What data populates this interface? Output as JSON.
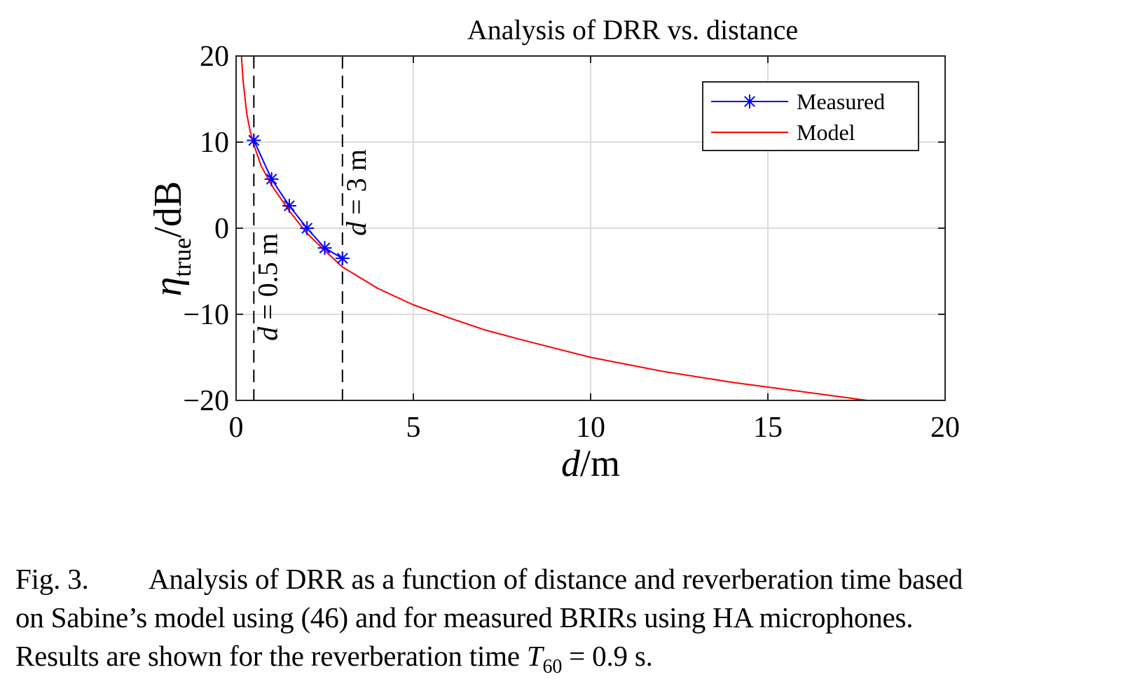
{
  "chart_data": {
    "type": "line",
    "title": "Analysis of DRR vs. distance",
    "xlabel": {
      "var": "d",
      "unit": "/m"
    },
    "ylabel": {
      "var": "η",
      "sub": "true",
      "unit": "/dB"
    },
    "xlim": [
      0,
      20
    ],
    "ylim": [
      -20,
      20
    ],
    "xticks": [
      0,
      5,
      10,
      15,
      20
    ],
    "yticks": [
      20,
      10,
      0,
      -10,
      -20
    ],
    "ytick_labels": [
      "20",
      "10",
      "0",
      "−10",
      "−20"
    ],
    "grid": true,
    "legend_placement": "top-right",
    "series": [
      {
        "name": "Measured",
        "color": "#0000ff",
        "marker": "asterisk",
        "x": [
          0.5,
          1.0,
          1.5,
          2.0,
          2.5,
          3.0
        ],
        "y": [
          10.2,
          5.7,
          2.6,
          0.0,
          -2.3,
          -3.5
        ]
      },
      {
        "name": "Model",
        "color": "#ff0000",
        "marker": "none",
        "x": [
          0.15,
          0.2,
          0.3,
          0.4,
          0.5,
          0.7,
          1.0,
          1.5,
          2.0,
          2.5,
          3.0,
          4.0,
          5.0,
          6.0,
          7.0,
          8.0,
          10.0,
          12.0,
          14.0,
          16.0,
          17.8
        ],
        "y": [
          20.0,
          17.0,
          13.3,
          11.2,
          9.7,
          7.3,
          5.0,
          2.0,
          -0.6,
          -2.6,
          -4.5,
          -7.0,
          -8.9,
          -10.4,
          -11.8,
          -12.9,
          -15.0,
          -16.6,
          -17.9,
          -19.0,
          -20.0
        ]
      }
    ],
    "annotations": [
      {
        "x": 0.5,
        "style": "dashed-vertical",
        "label_var": "d",
        "label_rest": " = 0.5 m"
      },
      {
        "x": 3.0,
        "style": "dashed-vertical",
        "label_var": "d",
        "label_rest": " = 3 m"
      }
    ]
  },
  "caption": {
    "label": "Fig. 3.",
    "line1": "Analysis of DRR as a function of distance and reverberation time based",
    "line2": "on Sabine’s model using (46) and for measured BRIRs using HA microphones.",
    "line3_pre": "Results are shown for the reverberation time ",
    "line3_var": "T",
    "line3_sub": "60",
    "line3_post": " = 0.9 s."
  }
}
